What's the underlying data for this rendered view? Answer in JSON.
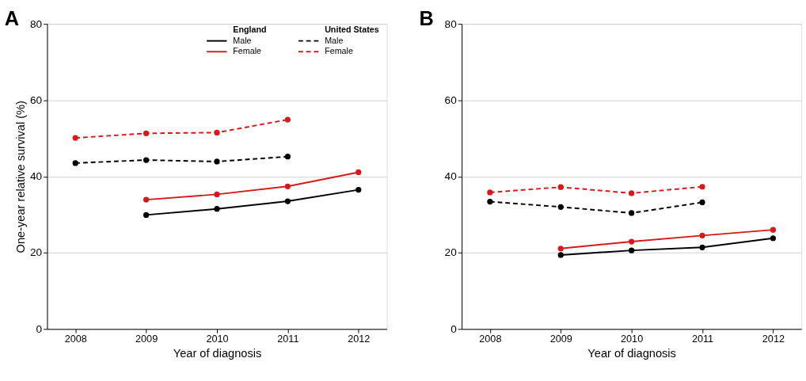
{
  "chart_data": [
    {
      "type": "line",
      "title": "A",
      "xlabel": "Year of diagnosis",
      "ylabel": "One-year relative survival (%)",
      "x": [
        2008,
        2009,
        2010,
        2011,
        2012
      ],
      "xlim": [
        2007.6,
        2012.4
      ],
      "xticks": [
        2008,
        2009,
        2010,
        2011,
        2012
      ],
      "ylim": [
        0,
        80
      ],
      "yticks": [
        0,
        20,
        40,
        60,
        80
      ],
      "grid": "y",
      "marker": "circle",
      "legend": "top right",
      "annotations": [
        "England",
        "United States"
      ],
      "series": [
        {
          "name": "Male",
          "color": "#000000",
          "line_style": "solid",
          "values": [
            null,
            29.9,
            31.5,
            33.5,
            36.5
          ]
        },
        {
          "name": "Female",
          "color": "#d7191c",
          "line_style": "solid",
          "values": [
            null,
            33.9,
            35.3,
            37.4,
            41.1
          ]
        },
        {
          "name": "Male",
          "color": "#000000",
          "line_style": "dashed",
          "values": [
            43.5,
            44.3,
            43.9,
            45.2,
            null
          ]
        },
        {
          "name": "Female",
          "color": "#d7191c",
          "line_style": "dashed",
          "values": [
            50.1,
            51.3,
            51.5,
            54.9,
            null
          ]
        }
      ]
    },
    {
      "type": "line",
      "title": "B",
      "xlabel": "Year of diagnosis",
      "x": [
        2008,
        2009,
        2010,
        2011,
        2012
      ],
      "xlim": [
        2007.6,
        2012.4
      ],
      "xticks": [
        2008,
        2009,
        2010,
        2011,
        2012
      ],
      "ylim": [
        0,
        80
      ],
      "yticks": [
        0,
        20,
        40,
        60,
        80
      ],
      "grid": "y",
      "marker": "circle",
      "series": [
        {
          "color": "#000000",
          "line_style": "solid",
          "values": [
            null,
            19.4,
            20.6,
            21.4,
            23.8
          ]
        },
        {
          "color": "#d7191c",
          "line_style": "solid",
          "values": [
            null,
            21.1,
            22.9,
            24.5,
            26.0
          ]
        },
        {
          "color": "#000000",
          "line_style": "dashed",
          "values": [
            33.4,
            32.0,
            30.4,
            33.2,
            null
          ]
        },
        {
          "color": "#d7191c",
          "line_style": "dashed",
          "values": [
            35.8,
            37.2,
            35.6,
            37.3,
            null
          ]
        }
      ]
    }
  ]
}
